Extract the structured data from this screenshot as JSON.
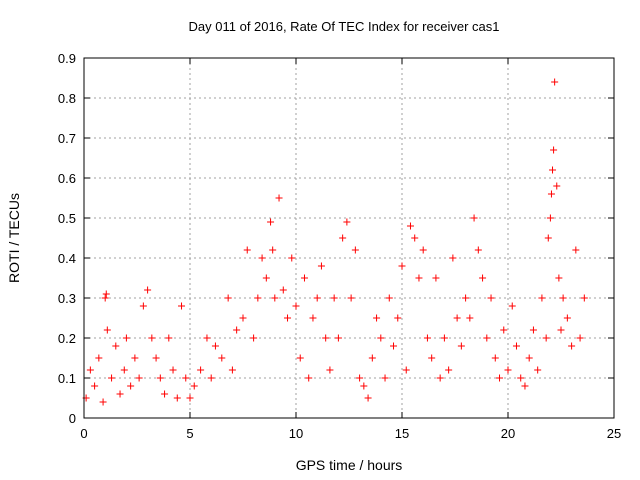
{
  "chart_data": {
    "type": "scatter",
    "title": "Day 011 of 2016, Rate Of TEC Index for receiver cas1",
    "xlabel": "GPS time / hours",
    "ylabel": "ROTI / TECUs",
    "xlim": [
      0,
      25
    ],
    "ylim": [
      0,
      0.9
    ],
    "xticks": [
      0,
      5,
      10,
      15,
      20,
      25
    ],
    "yticks": [
      0,
      0.1,
      0.2,
      0.3,
      0.4,
      0.5,
      0.6,
      0.7,
      0.8,
      0.9
    ],
    "grid": true,
    "marker": "+",
    "color": "#ff0000",
    "series": [
      {
        "x": [
          0.1,
          0.3,
          0.5,
          0.7,
          0.9,
          1.0,
          1.05,
          1.1,
          1.3,
          1.5,
          1.7,
          1.9,
          2.0,
          2.2,
          2.4,
          2.6,
          2.8,
          3.0,
          3.2,
          3.4,
          3.6,
          3.8,
          4.0,
          4.2,
          4.4,
          4.6,
          4.8,
          5.0,
          5.2,
          5.5,
          5.8,
          6.0,
          6.2,
          6.5,
          6.8,
          7.0,
          7.2,
          7.5,
          7.7,
          8.0,
          8.2,
          8.4,
          8.6,
          8.8,
          8.9,
          9.0,
          9.2,
          9.4,
          9.6,
          9.8,
          10.0,
          10.2,
          10.4,
          10.6,
          10.8,
          11.0,
          11.2,
          11.4,
          11.6,
          11.8,
          12.0,
          12.2,
          12.4,
          12.6,
          12.8,
          13.0,
          13.2,
          13.4,
          13.6,
          13.8,
          14.0,
          14.2,
          14.4,
          14.6,
          14.8,
          15.0,
          15.2,
          15.4,
          15.6,
          15.8,
          16.0,
          16.2,
          16.4,
          16.6,
          16.8,
          17.0,
          17.2,
          17.4,
          17.6,
          17.8,
          18.0,
          18.2,
          18.4,
          18.6,
          18.8,
          19.0,
          19.2,
          19.4,
          19.6,
          19.8,
          20.0,
          20.2,
          20.4,
          20.6,
          20.8,
          21.0,
          21.2,
          21.4,
          21.6,
          21.8,
          21.9,
          22.0,
          22.05,
          22.1,
          22.15,
          22.2,
          22.3,
          22.4,
          22.5,
          22.6,
          22.8,
          23.0,
          23.2,
          23.4,
          23.6
        ],
        "y": [
          0.05,
          0.12,
          0.08,
          0.15,
          0.04,
          0.3,
          0.31,
          0.22,
          0.1,
          0.18,
          0.06,
          0.12,
          0.2,
          0.08,
          0.15,
          0.1,
          0.28,
          0.32,
          0.2,
          0.15,
          0.1,
          0.06,
          0.2,
          0.12,
          0.05,
          0.28,
          0.1,
          0.05,
          0.08,
          0.12,
          0.2,
          0.1,
          0.18,
          0.15,
          0.3,
          0.12,
          0.22,
          0.25,
          0.42,
          0.2,
          0.3,
          0.4,
          0.35,
          0.49,
          0.42,
          0.3,
          0.55,
          0.32,
          0.25,
          0.4,
          0.28,
          0.15,
          0.35,
          0.1,
          0.25,
          0.3,
          0.38,
          0.2,
          0.12,
          0.3,
          0.2,
          0.45,
          0.49,
          0.3,
          0.42,
          0.1,
          0.08,
          0.05,
          0.15,
          0.25,
          0.2,
          0.1,
          0.3,
          0.18,
          0.25,
          0.38,
          0.12,
          0.48,
          0.45,
          0.35,
          0.42,
          0.2,
          0.15,
          0.35,
          0.1,
          0.2,
          0.12,
          0.4,
          0.25,
          0.18,
          0.3,
          0.25,
          0.5,
          0.42,
          0.35,
          0.2,
          0.3,
          0.15,
          0.1,
          0.22,
          0.12,
          0.28,
          0.18,
          0.1,
          0.08,
          0.15,
          0.22,
          0.12,
          0.3,
          0.2,
          0.45,
          0.5,
          0.56,
          0.62,
          0.67,
          0.84,
          0.58,
          0.35,
          0.22,
          0.3,
          0.25,
          0.18,
          0.42,
          0.2,
          0.3
        ]
      }
    ]
  }
}
